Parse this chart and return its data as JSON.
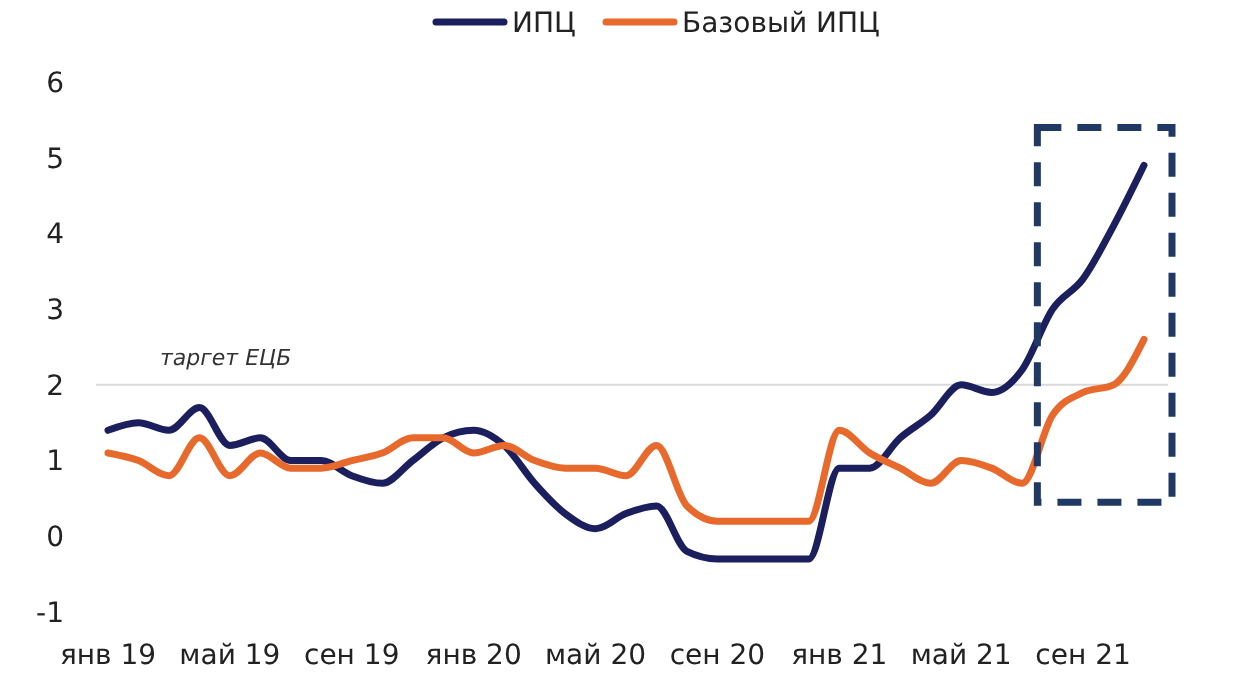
{
  "chart_data": {
    "type": "line",
    "categories": [
      "янв 19",
      null,
      null,
      null,
      "май 19",
      null,
      null,
      null,
      "сен 19",
      null,
      null,
      null,
      "янв 20",
      null,
      null,
      null,
      "май 20",
      null,
      null,
      null,
      "сен 20",
      null,
      null,
      null,
      "янв 21",
      null,
      null,
      null,
      "май 21",
      null,
      null,
      null,
      "сен 21",
      null,
      null
    ],
    "series": [
      {
        "name": "ИПЦ",
        "color": "#1c1f5e",
        "values": [
          1.4,
          1.5,
          1.4,
          1.7,
          1.2,
          1.3,
          1.0,
          1.0,
          0.8,
          0.7,
          1.0,
          1.3,
          1.4,
          1.2,
          0.7,
          0.3,
          0.1,
          0.3,
          0.4,
          -0.2,
          -0.3,
          -0.3,
          -0.3,
          -0.3,
          0.9,
          0.9,
          1.3,
          1.6,
          2.0,
          1.9,
          2.2,
          3.0,
          3.4,
          4.1,
          4.9
        ]
      },
      {
        "name": "Базовый ИПЦ",
        "color": "#e8692c",
        "values": [
          1.1,
          1.0,
          0.8,
          1.3,
          0.8,
          1.1,
          0.9,
          0.9,
          1.0,
          1.1,
          1.3,
          1.3,
          1.1,
          1.2,
          1.0,
          0.9,
          0.9,
          0.8,
          1.2,
          0.4,
          0.2,
          0.2,
          0.2,
          0.2,
          1.4,
          1.1,
          0.9,
          0.7,
          1.0,
          0.9,
          0.7,
          1.6,
          1.9,
          2.0,
          2.6
        ]
      }
    ],
    "ylim": [
      -1,
      6
    ],
    "yticks": [
      -1,
      0,
      1,
      2,
      3,
      4,
      5,
      6
    ],
    "grid": false,
    "legend": "top",
    "line_style": "solid",
    "marker": "none",
    "ref_lines": [
      {
        "axis": "y",
        "value": 2,
        "label": "таргет ЕЦБ",
        "color": "#d9d9d9"
      }
    ]
  }
}
